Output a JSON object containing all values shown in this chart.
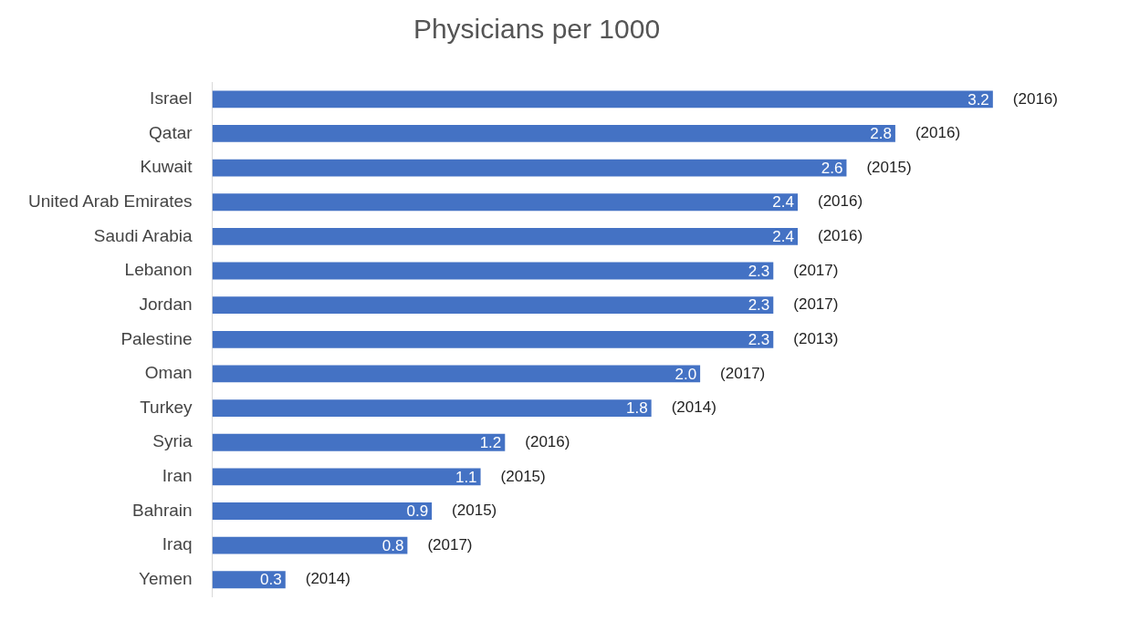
{
  "chart_data": {
    "type": "bar",
    "orientation": "horizontal",
    "title": "Physicians per 1000",
    "categories": [
      "Israel",
      "Qatar",
      "Kuwait",
      "United Arab Emirates",
      "Saudi Arabia",
      "Lebanon",
      "Jordan",
      "Palestine",
      "Oman",
      "Turkey",
      "Syria",
      "Iran",
      "Bahrain",
      "Iraq",
      "Yemen"
    ],
    "values": [
      3.2,
      2.8,
      2.6,
      2.4,
      2.4,
      2.3,
      2.3,
      2.3,
      2.0,
      1.8,
      1.2,
      1.1,
      0.9,
      0.8,
      0.3
    ],
    "value_labels": [
      "3.2",
      "2.8",
      "2.6",
      "2.4",
      "2.4",
      "2.3",
      "2.3",
      "2.3",
      "2.0",
      "1.8",
      "1.2",
      "1.1",
      "0.9",
      "0.8",
      "0.3"
    ],
    "color": "#4472c4",
    "grid": false,
    "legend": false,
    "tick_labels": "y",
    "annotations": [
      {
        "text": "(2016)",
        "x": 3.2,
        "y": "Israel"
      },
      {
        "text": "(2016)",
        "x": 2.8,
        "y": "Qatar"
      },
      {
        "text": "(2015)",
        "x": 2.6,
        "y": "Kuwait"
      },
      {
        "text": "(2016)",
        "x": 2.4,
        "y": "United Arab Emirates"
      },
      {
        "text": "(2016)",
        "x": 2.4,
        "y": "Saudi Arabia"
      },
      {
        "text": "(2017)",
        "x": 2.3,
        "y": "Lebanon"
      },
      {
        "text": "(2017)",
        "x": 2.3,
        "y": "Jordan"
      },
      {
        "text": "(2013)",
        "x": 2.3,
        "y": "Palestine"
      },
      {
        "text": "(2017)",
        "x": 2.0,
        "y": "Oman"
      },
      {
        "text": "(2014)",
        "x": 1.8,
        "y": "Turkey"
      },
      {
        "text": "(2016)",
        "x": 1.2,
        "y": "Syria"
      },
      {
        "text": "(2015)",
        "x": 1.1,
        "y": "Iran"
      },
      {
        "text": "(2015)",
        "x": 0.9,
        "y": "Bahrain"
      },
      {
        "text": "(2017)",
        "x": 0.8,
        "y": "Iraq"
      },
      {
        "text": "(2014)",
        "x": 0.3,
        "y": "Yemen"
      }
    ]
  }
}
